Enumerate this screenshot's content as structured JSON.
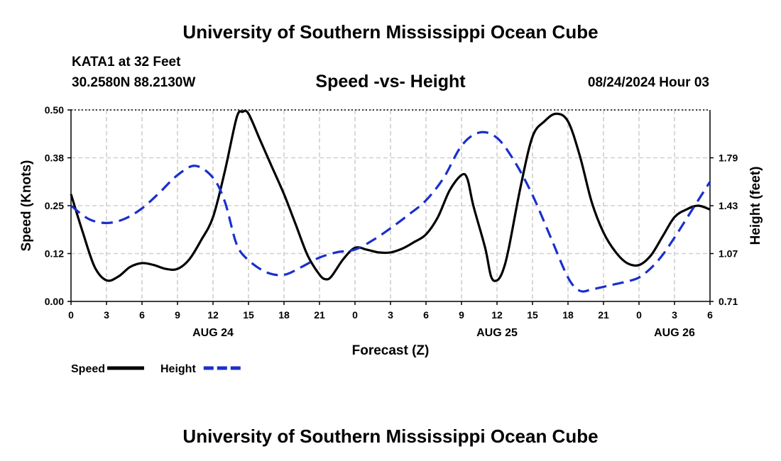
{
  "header": {
    "title": "University of Southern Mississippi Ocean Cube",
    "station": "KATA1 at 32 Feet",
    "coordinates": "30.2580N  88.2130W",
    "subtitle": "Speed -vs- Height",
    "timestamp": "08/24/2024 Hour 03"
  },
  "footer": {
    "title": "University of Southern Mississippi Ocean Cube"
  },
  "chart_data": {
    "type": "line",
    "title": "Speed -vs- Height",
    "xlabel": "Forecast (Z)",
    "ylabel_left": "Speed (Knots)",
    "ylabel_right": "Height (feet)",
    "x_range_hours": [
      0,
      54
    ],
    "x_ticks": [
      {
        "hour": 0,
        "label": "0"
      },
      {
        "hour": 3,
        "label": "3"
      },
      {
        "hour": 6,
        "label": "6"
      },
      {
        "hour": 9,
        "label": "9"
      },
      {
        "hour": 12,
        "label": "12"
      },
      {
        "hour": 15,
        "label": "15"
      },
      {
        "hour": 18,
        "label": "18"
      },
      {
        "hour": 21,
        "label": "21"
      },
      {
        "hour": 24,
        "label": "0"
      },
      {
        "hour": 27,
        "label": "3"
      },
      {
        "hour": 30,
        "label": "6"
      },
      {
        "hour": 33,
        "label": "9"
      },
      {
        "hour": 36,
        "label": "12"
      },
      {
        "hour": 39,
        "label": "15"
      },
      {
        "hour": 42,
        "label": "18"
      },
      {
        "hour": 45,
        "label": "21"
      },
      {
        "hour": 48,
        "label": "0"
      },
      {
        "hour": 51,
        "label": "3"
      },
      {
        "hour": 54,
        "label": "6"
      }
    ],
    "date_labels": [
      {
        "hour": 12,
        "label": "AUG 24"
      },
      {
        "hour": 36,
        "label": "AUG 25"
      },
      {
        "hour": 51,
        "label": "AUG 26"
      }
    ],
    "y_left": {
      "range": [
        0,
        0.5
      ],
      "ticks": [
        0.0,
        0.125,
        0.25,
        0.375,
        0.5
      ],
      "tick_labels": [
        "0.00",
        "0.12",
        "0.25",
        "0.38",
        "0.50"
      ]
    },
    "y_right": {
      "range": [
        0.71,
        2.15
      ],
      "ticks": [
        0.71,
        1.07,
        1.43,
        1.79
      ],
      "tick_labels": [
        "0.71",
        "1.07",
        "1.43",
        "1.79"
      ]
    },
    "grid": true,
    "legend_position": "bottom-left",
    "series": [
      {
        "name": "Speed",
        "axis": "left",
        "color": "#000000",
        "style": "solid",
        "points": [
          [
            0,
            0.28
          ],
          [
            1,
            0.18
          ],
          [
            2,
            0.09
          ],
          [
            3,
            0.055
          ],
          [
            4,
            0.065
          ],
          [
            5,
            0.09
          ],
          [
            6,
            0.1
          ],
          [
            7,
            0.095
          ],
          [
            8,
            0.085
          ],
          [
            9,
            0.085
          ],
          [
            10,
            0.11
          ],
          [
            11,
            0.16
          ],
          [
            12,
            0.22
          ],
          [
            13,
            0.34
          ],
          [
            14,
            0.48
          ],
          [
            14.5,
            0.495
          ],
          [
            15,
            0.49
          ],
          [
            16,
            0.42
          ],
          [
            17,
            0.35
          ],
          [
            18,
            0.28
          ],
          [
            19,
            0.2
          ],
          [
            20,
            0.12
          ],
          [
            21,
            0.07
          ],
          [
            21.5,
            0.058
          ],
          [
            22,
            0.065
          ],
          [
            23,
            0.11
          ],
          [
            24,
            0.14
          ],
          [
            25,
            0.135
          ],
          [
            26,
            0.128
          ],
          [
            27,
            0.128
          ],
          [
            28,
            0.138
          ],
          [
            29,
            0.155
          ],
          [
            30,
            0.175
          ],
          [
            31,
            0.22
          ],
          [
            32,
            0.29
          ],
          [
            33,
            0.33
          ],
          [
            33.5,
            0.32
          ],
          [
            34,
            0.25
          ],
          [
            35,
            0.14
          ],
          [
            35.5,
            0.065
          ],
          [
            36,
            0.055
          ],
          [
            36.5,
            0.08
          ],
          [
            37,
            0.14
          ],
          [
            38,
            0.3
          ],
          [
            39,
            0.43
          ],
          [
            40,
            0.47
          ],
          [
            41,
            0.49
          ],
          [
            42,
            0.47
          ],
          [
            43,
            0.38
          ],
          [
            44,
            0.26
          ],
          [
            45,
            0.18
          ],
          [
            46,
            0.13
          ],
          [
            47,
            0.1
          ],
          [
            48,
            0.095
          ],
          [
            49,
            0.12
          ],
          [
            50,
            0.17
          ],
          [
            51,
            0.22
          ],
          [
            52,
            0.24
          ],
          [
            53,
            0.25
          ],
          [
            54,
            0.24
          ]
        ]
      },
      {
        "name": "Height",
        "axis": "right",
        "color": "#1a2fcc",
        "style": "dashed",
        "points": [
          [
            0,
            1.43
          ],
          [
            1.5,
            1.33
          ],
          [
            3,
            1.3
          ],
          [
            4.5,
            1.33
          ],
          [
            6,
            1.41
          ],
          [
            7.5,
            1.53
          ],
          [
            9,
            1.66
          ],
          [
            10.5,
            1.73
          ],
          [
            12,
            1.64
          ],
          [
            13,
            1.46
          ],
          [
            14,
            1.14
          ],
          [
            15,
            1.02
          ],
          [
            16.5,
            0.93
          ],
          [
            18,
            0.91
          ],
          [
            19.5,
            0.97
          ],
          [
            21,
            1.04
          ],
          [
            22.5,
            1.08
          ],
          [
            24,
            1.1
          ],
          [
            25.5,
            1.17
          ],
          [
            27,
            1.26
          ],
          [
            28.5,
            1.36
          ],
          [
            30,
            1.47
          ],
          [
            31.5,
            1.64
          ],
          [
            33,
            1.88
          ],
          [
            34.5,
            1.98
          ],
          [
            36,
            1.94
          ],
          [
            37.5,
            1.76
          ],
          [
            39,
            1.51
          ],
          [
            40.5,
            1.2
          ],
          [
            42,
            0.89
          ],
          [
            43,
            0.79
          ],
          [
            44,
            0.8
          ],
          [
            45,
            0.82
          ],
          [
            46,
            0.84
          ],
          [
            47,
            0.86
          ],
          [
            48,
            0.89
          ],
          [
            49,
            0.96
          ],
          [
            50,
            1.06
          ],
          [
            51,
            1.19
          ],
          [
            52,
            1.33
          ],
          [
            53,
            1.47
          ],
          [
            54,
            1.61
          ]
        ]
      }
    ]
  }
}
